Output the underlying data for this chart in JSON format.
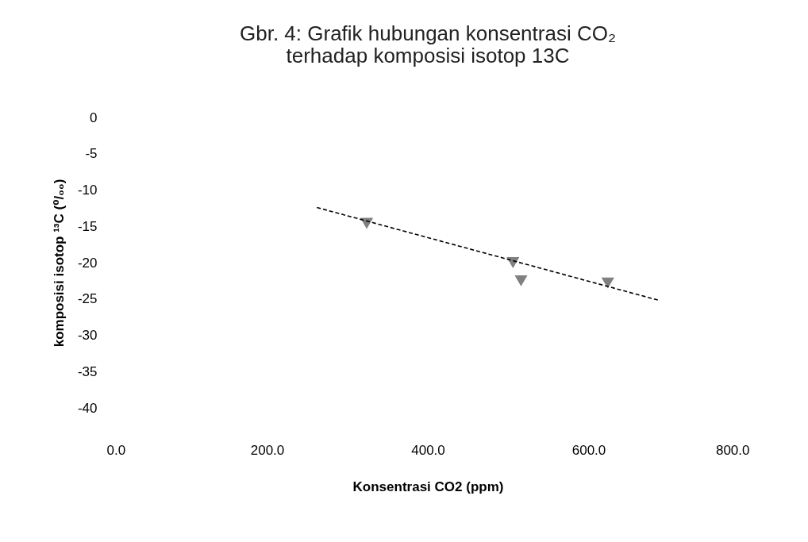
{
  "chart_data": {
    "type": "scatter",
    "title": "Gbr. 4: Grafik hubungan konsentrasi CO₂\nterhadap komposisi isotop 13C",
    "xlabel": "Konsentrasi CO2 (ppm)",
    "ylabel": "komposisi isotop ¹³C (⁰/₀₀)",
    "series": [
      {
        "color": "#808080",
        "marker": "triangle",
        "x": [
          324,
          506,
          516,
          624
        ],
        "values": [
          -14.6,
          -20,
          -22.5,
          -22.8
        ]
      },
      {
        "type": "line",
        "color": "#000000",
        "line_style": "dashed",
        "marker": "none",
        "x": [
          262,
          688
        ],
        "values": [
          -12.4,
          -25.2
        ]
      }
    ],
    "xlim": [
      0,
      800
    ],
    "xticks": [
      {
        "value": 0,
        "label": "0.0"
      },
      {
        "value": 200,
        "label": "200.0"
      },
      {
        "value": 400,
        "label": "400.0"
      },
      {
        "value": 600,
        "label": "600.0"
      },
      {
        "value": 800,
        "label": "800.0"
      }
    ],
    "ylim": [
      -40,
      0
    ],
    "yticks": [
      -40,
      -35,
      -30,
      -25,
      -20,
      -15,
      -10,
      -5,
      0
    ],
    "grid": false
  }
}
